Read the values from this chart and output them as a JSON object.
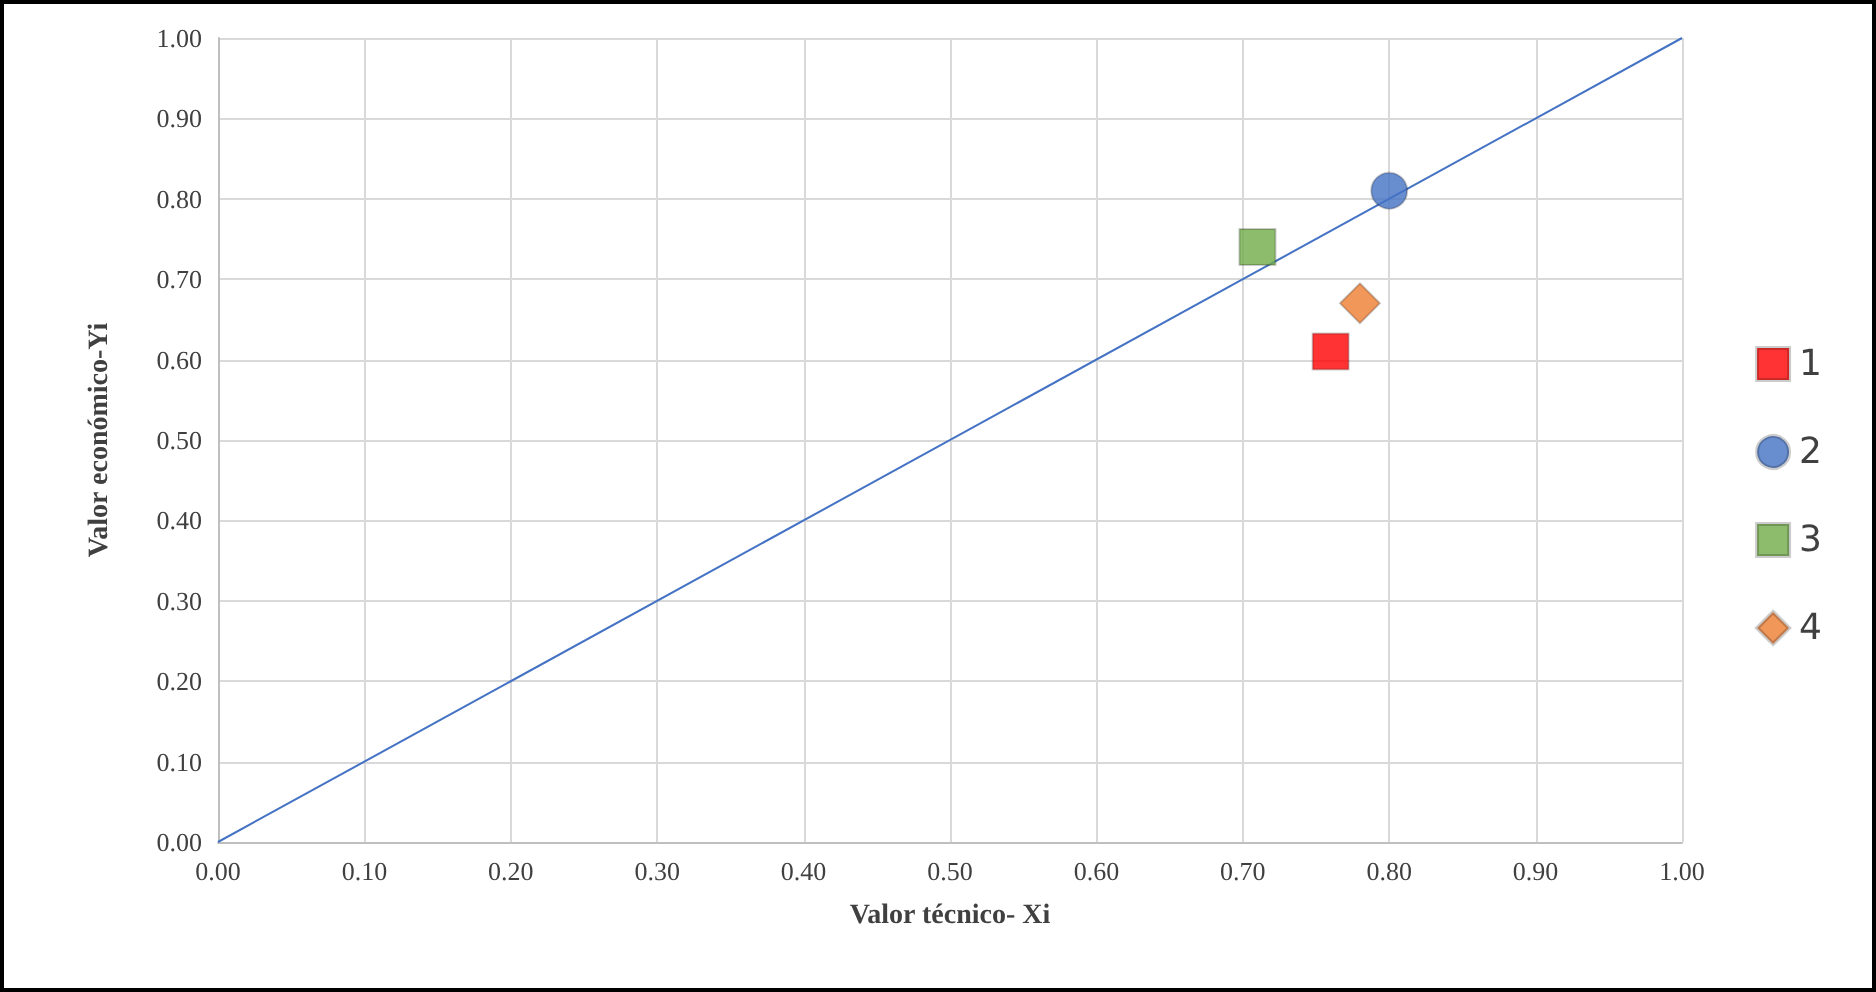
{
  "chart_data": {
    "type": "scatter",
    "xlabel": "Valor técnico- Xi",
    "ylabel": "Valor económico-Yi",
    "xlim": [
      0,
      1
    ],
    "ylim": [
      0,
      1
    ],
    "xticks": [
      {
        "value": 0,
        "label": "0.00"
      },
      {
        "value": 0.1,
        "label": "0.10"
      },
      {
        "value": 0.2,
        "label": "0.20"
      },
      {
        "value": 0.3,
        "label": "0.30"
      },
      {
        "value": 0.4,
        "label": "0.40"
      },
      {
        "value": 0.5,
        "label": "0.50"
      },
      {
        "value": 0.6,
        "label": "0.60"
      },
      {
        "value": 0.7,
        "label": "0.70"
      },
      {
        "value": 0.8,
        "label": "0.80"
      },
      {
        "value": 0.9,
        "label": "0.90"
      },
      {
        "value": 1,
        "label": "1.00"
      }
    ],
    "yticks": [
      {
        "value": 0,
        "label": "0.00"
      },
      {
        "value": 0.1,
        "label": "0.10"
      },
      {
        "value": 0.2,
        "label": "0.20"
      },
      {
        "value": 0.3,
        "label": "0.30"
      },
      {
        "value": 0.4,
        "label": "0.40"
      },
      {
        "value": 0.5,
        "label": "0.50"
      },
      {
        "value": 0.6,
        "label": "0.60"
      },
      {
        "value": 0.7,
        "label": "0.70"
      },
      {
        "value": 0.8,
        "label": "0.80"
      },
      {
        "value": 0.9,
        "label": "0.90"
      },
      {
        "value": 1,
        "label": "1.00"
      }
    ],
    "grid": true,
    "legend": "right",
    "series": [
      {
        "type": "line",
        "color": "#4472c4",
        "x": [
          0,
          1
        ],
        "values": [
          0,
          1
        ],
        "marker": "none",
        "line_style": "solid"
      },
      {
        "name": "1",
        "color": "#ff0000",
        "x": [
          0.76
        ],
        "values": [
          0.61
        ],
        "marker": "square"
      },
      {
        "name": "2",
        "color": "#4472c4",
        "x": [
          0.8
        ],
        "values": [
          0.81
        ],
        "marker": "circle"
      },
      {
        "name": "3",
        "color": "#70ad47",
        "x": [
          0.71
        ],
        "values": [
          0.74
        ],
        "marker": "square"
      },
      {
        "name": "4",
        "color": "#ed7d31",
        "x": [
          0.78
        ],
        "values": [
          0.67
        ],
        "marker": "diamond"
      }
    ]
  }
}
